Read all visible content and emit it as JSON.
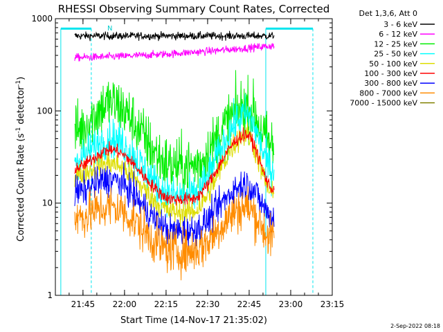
{
  "chart_data": {
    "type": "line",
    "title": "RHESSI Observing Summary Count Rates, Corrected",
    "xlabel": "Start Time (14-Nov-17 21:35:02)",
    "ylabel_main": "Corrected Count Rate (s",
    "ylabel_sup1": "-1",
    "ylabel_mid": " detector",
    "ylabel_sup2": "-1",
    "ylabel_end": ")",
    "yscale": "log",
    "ylim": [
      1,
      1000
    ],
    "xlim": [
      "21:35:02",
      "23:15:00"
    ],
    "x_ticks": [
      "21:45",
      "22:00",
      "22:15",
      "22:30",
      "22:45",
      "23:00",
      "23:15"
    ],
    "y_ticks": [
      "1",
      "10",
      "100",
      "1000"
    ],
    "grid": false,
    "legend_title": "Det 1,3,6, Att 0",
    "legend_position": "right",
    "flag_label": "N",
    "timestamp": "2-Sep-2022 08:18",
    "flag_lines": [
      {
        "label": "N",
        "start": "21:37:00",
        "end": "21:48:00",
        "color": "#00e5ee",
        "vlines": [
          "21:37:00",
          "21:48:00"
        ]
      },
      {
        "label": "",
        "start": "22:51:00",
        "end": "23:08:00",
        "color": "#00e5ee",
        "vlines": [
          "22:51:00",
          "23:08:00"
        ]
      }
    ],
    "data_window": [
      "21:42:00",
      "22:54:00"
    ],
    "series": [
      {
        "name": "3 - 6 keV",
        "color": "#000000",
        "profile": "flat",
        "level": 650,
        "noise": 0.06
      },
      {
        "name": "6 - 12 keV",
        "color": "#ff00ff",
        "profile": "rise",
        "level": 380,
        "end_level": 510,
        "noise": 0.06
      },
      {
        "name": "12 - 25 keV",
        "color": "#00ee00",
        "profile": "double",
        "peak1": 120,
        "valley": 25,
        "peak2": 110,
        "start": 60,
        "end": 40,
        "noise": 0.45
      },
      {
        "name": "25 - 50 keV",
        "color": "#00ffff",
        "profile": "double",
        "peak1": 50,
        "valley": 12,
        "peak2": 90,
        "start": 30,
        "end": 22,
        "noise": 0.3
      },
      {
        "name": "50 - 100 keV",
        "color": "#dddd00",
        "profile": "double",
        "peak1": 27,
        "valley": 8,
        "peak2": 55,
        "start": 20,
        "end": 12,
        "noise": 0.2
      },
      {
        "name": "100 - 300 keV",
        "color": "#ff0000",
        "profile": "double",
        "peak1": 38,
        "valley": 11,
        "peak2": 55,
        "start": 24,
        "end": 14,
        "noise": 0.1
      },
      {
        "name": "300 - 800 keV",
        "color": "#0000ff",
        "profile": "double",
        "peak1": 18,
        "valley": 5,
        "peak2": 16,
        "start": 13,
        "end": 7,
        "noise": 0.25
      },
      {
        "name": "800 - 7000 keV",
        "color": "#ff8c00",
        "profile": "double",
        "peak1": 9,
        "valley": 3,
        "peak2": 9,
        "start": 7,
        "end": 4,
        "noise": 0.35
      },
      {
        "name": "7000 - 15000 keV",
        "color": "#808000",
        "profile": "none"
      }
    ]
  }
}
